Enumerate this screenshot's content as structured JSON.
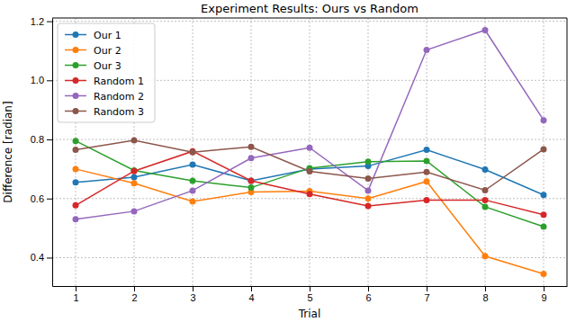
{
  "chart_data": {
    "type": "line",
    "title": "Experiment Results: Ours vs Random",
    "x_label": "Trial",
    "y_label": "Difference [radian]",
    "x": [
      1,
      2,
      3,
      4,
      5,
      6,
      7,
      8,
      9
    ],
    "series": [
      {
        "name": "Our 1",
        "color": "#1f77b4",
        "values": [
          0.655,
          0.672,
          0.715,
          0.66,
          0.7,
          0.71,
          0.765,
          0.698,
          0.612
        ]
      },
      {
        "name": "Our 2",
        "color": "#ff7f0e",
        "values": [
          0.7,
          0.652,
          0.59,
          0.622,
          0.625,
          0.6,
          0.658,
          0.405,
          0.345
        ]
      },
      {
        "name": "Our 3",
        "color": "#2ca02c",
        "values": [
          0.795,
          0.695,
          0.66,
          0.637,
          0.703,
          0.725,
          0.727,
          0.572,
          0.505
        ]
      },
      {
        "name": "Random 1",
        "color": "#d62728",
        "values": [
          0.577,
          0.693,
          0.76,
          0.66,
          0.615,
          0.575,
          0.595,
          0.595,
          0.545
        ]
      },
      {
        "name": "Random 2",
        "color": "#9467bd",
        "values": [
          0.53,
          0.557,
          0.627,
          0.737,
          0.772,
          0.627,
          1.103,
          1.17,
          0.865
        ]
      },
      {
        "name": "Random 3",
        "color": "#8c564b",
        "values": [
          0.765,
          0.797,
          0.757,
          0.775,
          0.692,
          0.668,
          0.69,
          0.628,
          0.767
        ]
      }
    ],
    "xlim": [
      0.6,
      9.4
    ],
    "xticks": [
      1,
      2,
      3,
      4,
      5,
      6,
      7,
      8,
      9
    ],
    "ylim": [
      0.304,
      1.211
    ],
    "yticks": [
      0.4,
      0.6,
      0.8,
      {
        "value": 1,
        "label": "1.0"
      },
      1.2
    ],
    "grid": true,
    "legend": "upper left",
    "marker": "circle"
  }
}
